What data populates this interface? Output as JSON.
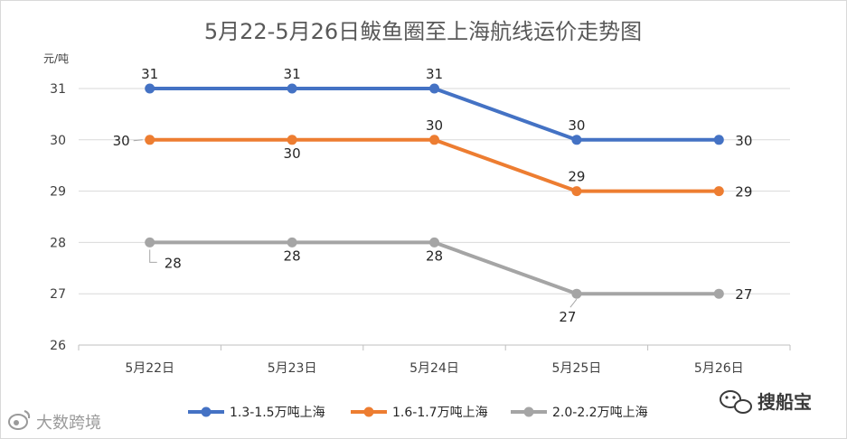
{
  "chart_data": {
    "type": "line",
    "title": "5月22-5月26日鲅鱼圈至上海航线运价走势图",
    "ylabel": "元/吨",
    "xlabel": "",
    "categories": [
      "5月22日",
      "5月23日",
      "5月24日",
      "5月25日",
      "5月26日"
    ],
    "ylim": [
      26,
      31
    ],
    "yticks": [
      "26",
      "27",
      "28",
      "29",
      "30",
      "31"
    ],
    "grid": true,
    "legend": "bottom",
    "series": [
      {
        "name": "1.3-1.5万吨上海",
        "values": [
          31,
          31,
          31,
          30,
          30
        ],
        "color": "#4472c4"
      },
      {
        "name": "1.6-1.7万吨上海",
        "values": [
          30,
          30,
          30,
          29,
          29
        ],
        "color": "#ed7d31"
      },
      {
        "name": "2.0-2.2万吨上海",
        "values": [
          28,
          28,
          28,
          27,
          27
        ],
        "color": "#a5a5a5"
      }
    ],
    "data_labels": [
      [
        "31",
        "31",
        "31",
        "30",
        "30"
      ],
      [
        "30",
        "30",
        "30",
        "29",
        "29"
      ],
      [
        "28",
        "28",
        "28",
        "27",
        "27"
      ]
    ]
  },
  "watermarks": {
    "left": "大数跨境",
    "right": "搜船宝"
  }
}
